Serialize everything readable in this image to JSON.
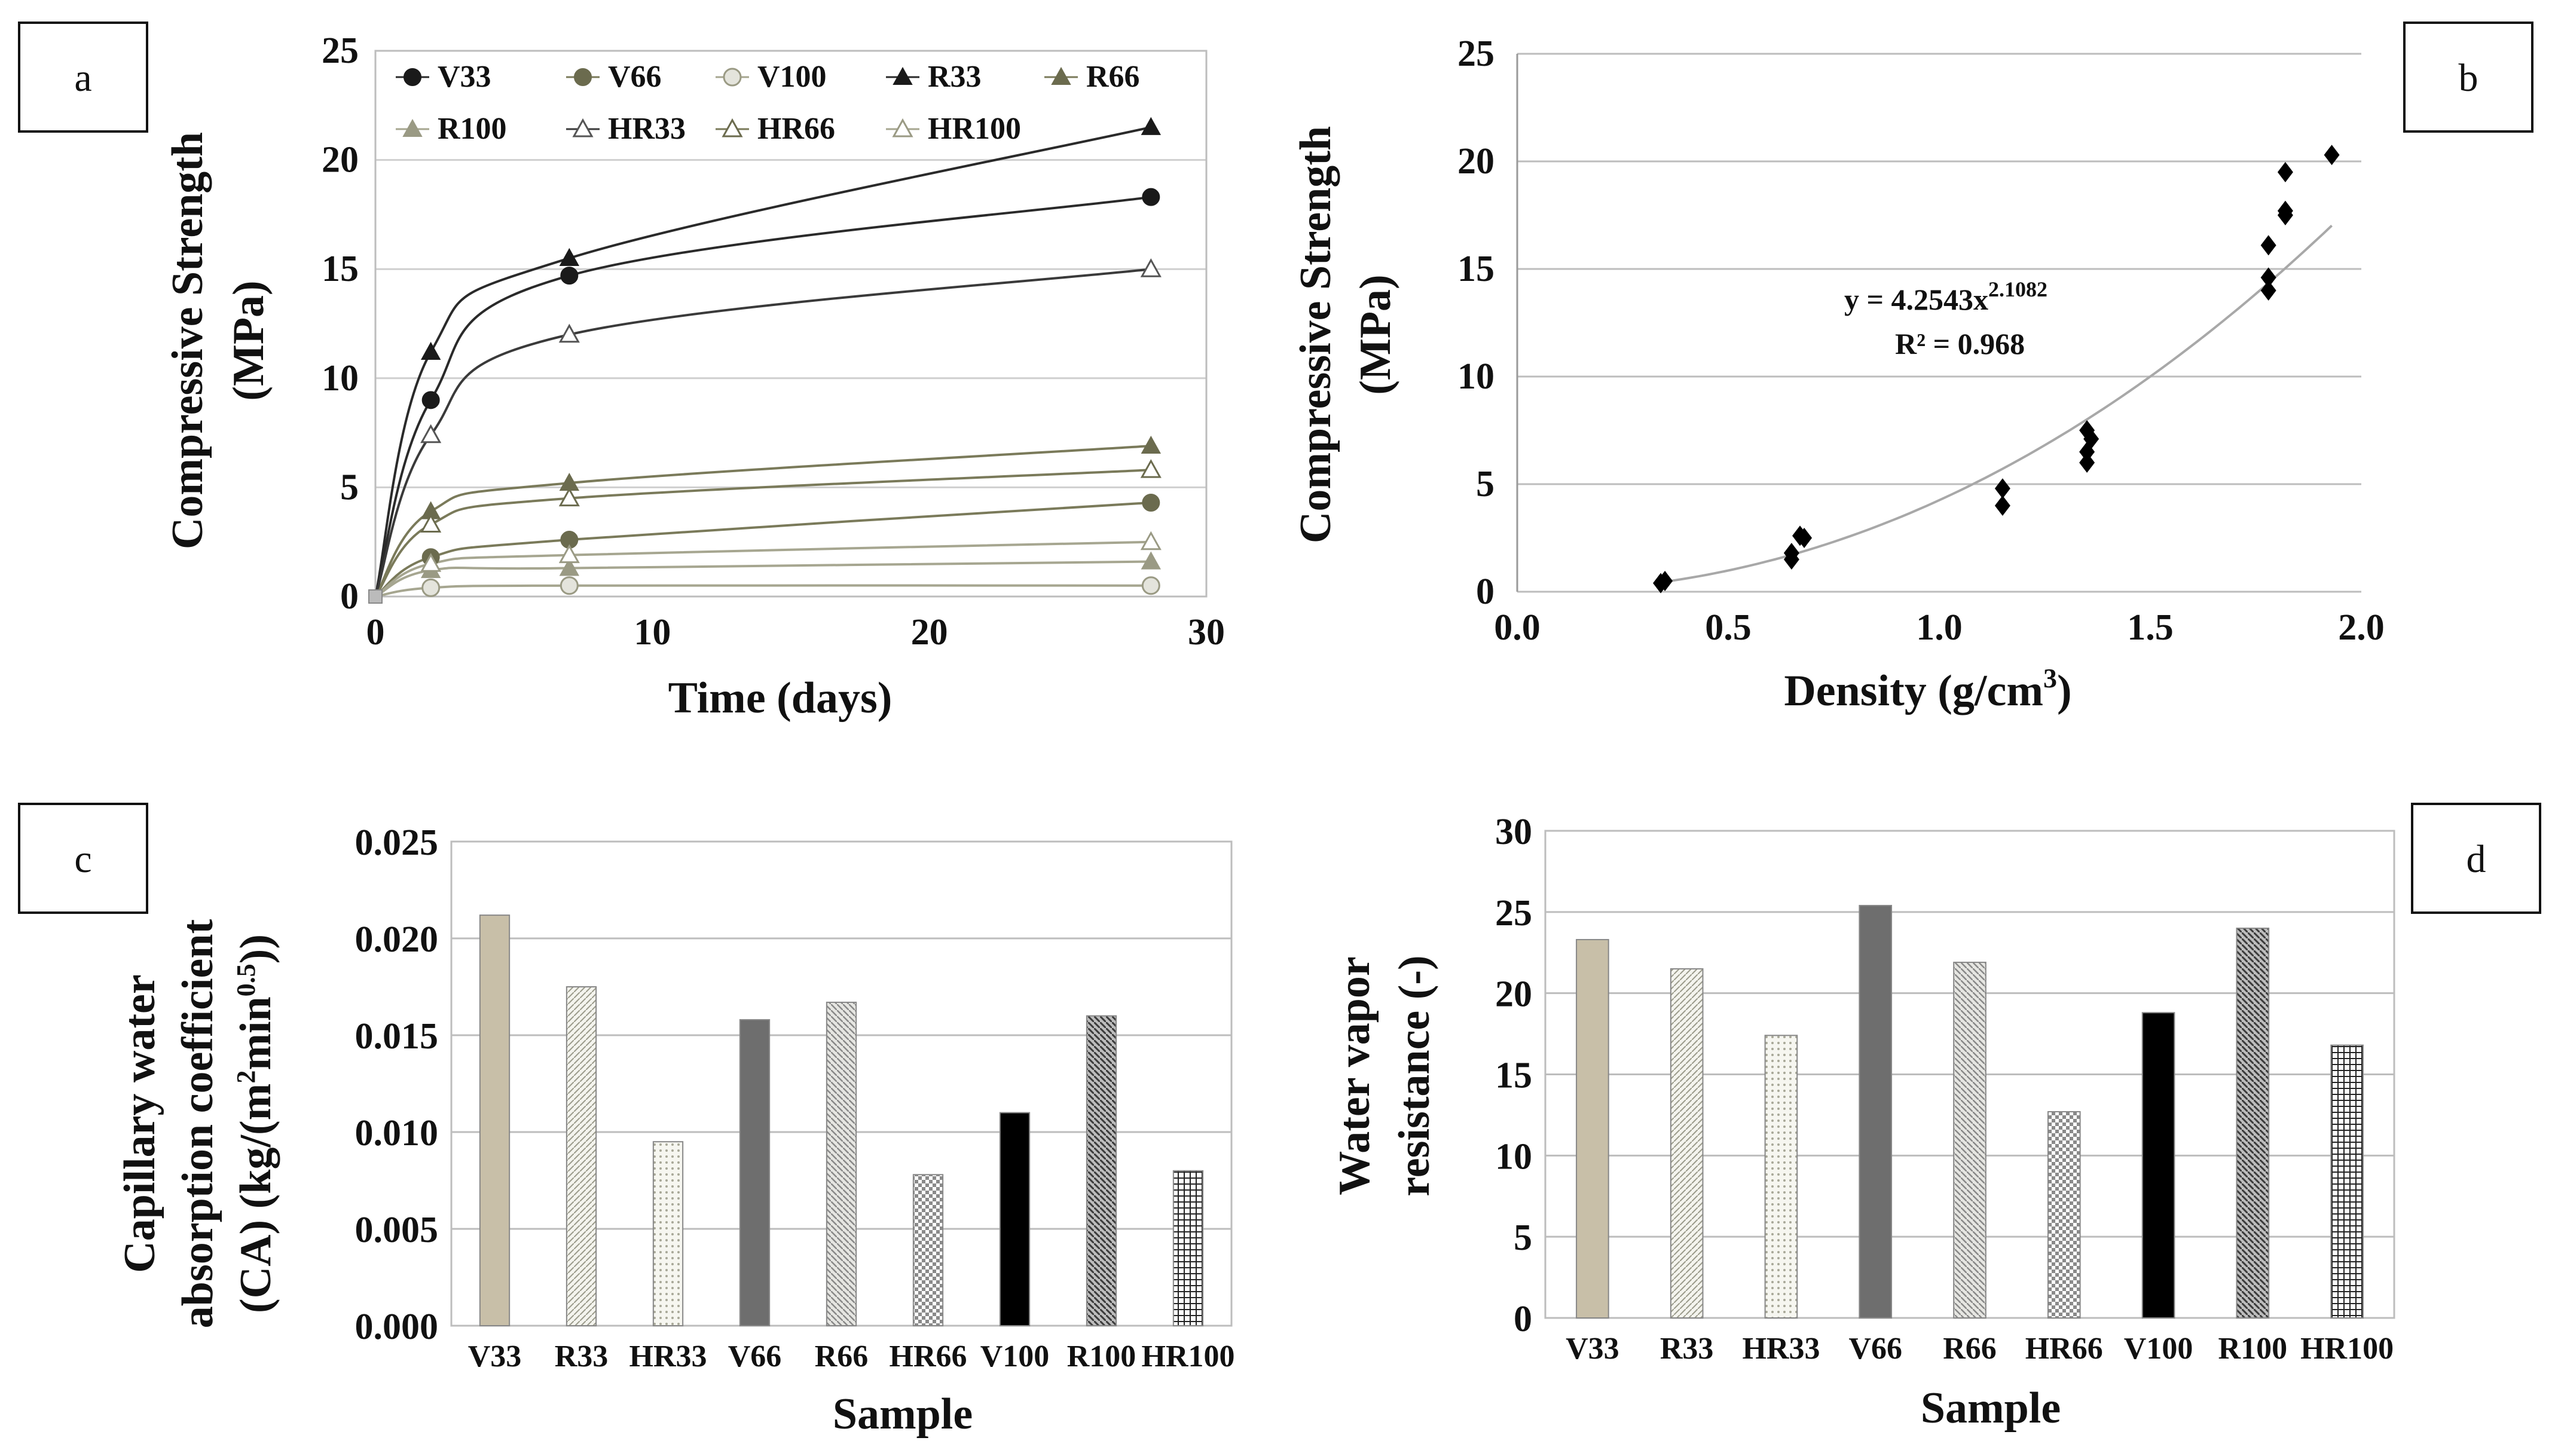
{
  "chart_data": [
    {
      "panel": "a",
      "type": "line",
      "xlabel": "Time (days)",
      "ylabel": [
        "Compressive Strength",
        "(MPa)"
      ],
      "xlim": [
        0,
        30
      ],
      "ylim": [
        0,
        25
      ],
      "xticks": [
        0,
        10,
        20,
        30
      ],
      "yticks": [
        0,
        5,
        10,
        15,
        20,
        25
      ],
      "x": [
        0,
        2,
        7,
        28
      ],
      "colors": {
        "dark": "#1a1a1a",
        "olive": "#6b6b4e",
        "light": "#9a9a84"
      },
      "series": [
        {
          "name": "V33",
          "values": [
            0,
            9.0,
            14.7,
            18.3
          ]
        },
        {
          "name": "V66",
          "values": [
            0,
            1.8,
            2.6,
            4.3
          ]
        },
        {
          "name": "V100",
          "values": [
            0,
            0.4,
            0.5,
            0.5
          ]
        },
        {
          "name": "R33",
          "values": [
            0,
            11.2,
            15.5,
            21.5
          ]
        },
        {
          "name": "R66",
          "values": [
            0,
            3.9,
            5.2,
            6.9
          ]
        },
        {
          "name": "R100",
          "values": [
            0,
            1.2,
            1.3,
            1.6
          ]
        },
        {
          "name": "HR33",
          "values": [
            0,
            7.4,
            12.0,
            15.0
          ]
        },
        {
          "name": "HR66",
          "values": [
            0,
            3.3,
            4.5,
            5.8
          ]
        },
        {
          "name": "HR100",
          "values": [
            0,
            1.5,
            1.9,
            2.5
          ]
        }
      ]
    },
    {
      "panel": "b",
      "type": "scatter",
      "xlabel": "Density (g/cm",
      "xlabel_sup": "3",
      "xlabel_end": ")",
      "ylabel": [
        "Compressive Strength",
        "(MPa)"
      ],
      "xlim": [
        0,
        2
      ],
      "ylim": [
        0,
        25
      ],
      "xticks": [
        "0.0",
        "0.5",
        "1.0",
        "1.5",
        "2.0"
      ],
      "yticks": [
        0,
        5,
        10,
        15,
        20,
        25
      ],
      "points": [
        [
          0.34,
          0.4
        ],
        [
          0.35,
          0.5
        ],
        [
          0.65,
          1.5
        ],
        [
          0.65,
          1.8
        ],
        [
          0.67,
          2.6
        ],
        [
          0.68,
          2.5
        ],
        [
          1.15,
          4.0
        ],
        [
          1.15,
          4.8
        ],
        [
          1.35,
          6.0
        ],
        [
          1.35,
          6.5
        ],
        [
          1.36,
          7.1
        ],
        [
          1.35,
          7.5
        ],
        [
          1.78,
          14.0
        ],
        [
          1.78,
          14.6
        ],
        [
          1.78,
          16.1
        ],
        [
          1.82,
          17.5
        ],
        [
          1.82,
          17.7
        ],
        [
          1.82,
          19.5
        ],
        [
          1.93,
          20.3
        ]
      ],
      "fit": {
        "a": 4.2543,
        "b": 2.1082,
        "xrange": [
          0.33,
          1.93
        ]
      },
      "equation": {
        "prefix": "y = 4.2543x",
        "exp": "2.1082",
        "r2": "R² = 0.968"
      }
    },
    {
      "panel": "c",
      "type": "bar",
      "xlabel": "Sample",
      "ylabel": [
        "Capillary water",
        "absorption coefficient",
        "(CA)  (kg/(m",
        "2",
        "min",
        "0.5",
        "))"
      ],
      "ylim": [
        0,
        0.025
      ],
      "yticks": [
        "0.000",
        "0.005",
        "0.010",
        "0.015",
        "0.020",
        "0.025"
      ],
      "categories": [
        "V33",
        "R33",
        "HR33",
        "V66",
        "R66",
        "HR66",
        "V100",
        "R100",
        "HR100"
      ],
      "values": [
        0.0212,
        0.0175,
        0.0095,
        0.0158,
        0.0167,
        0.0078,
        0.011,
        0.016,
        0.008
      ]
    },
    {
      "panel": "d",
      "type": "bar",
      "xlabel": "Sample",
      "ylabel": [
        "Water vapor",
        "resistance (-)"
      ],
      "ylim": [
        0,
        30
      ],
      "yticks": [
        0,
        5,
        10,
        15,
        20,
        25,
        30
      ],
      "categories": [
        "V33",
        "R33",
        "HR33",
        "V66",
        "R66",
        "HR66",
        "V100",
        "R100",
        "HR100"
      ],
      "values": [
        23.3,
        21.5,
        17.4,
        25.4,
        21.9,
        12.7,
        18.8,
        24.0,
        16.8
      ]
    }
  ],
  "panel_labels": [
    "a",
    "b",
    "c",
    "d"
  ],
  "bar_fills": [
    "#c8bfa8",
    "url(#p-diag-fine)",
    "url(#p-dots)",
    "#6e6e6e",
    "url(#p-diag-med)",
    "url(#p-check)",
    "#000000",
    "url(#p-diag-dark)",
    "url(#p-grid-dark)"
  ]
}
